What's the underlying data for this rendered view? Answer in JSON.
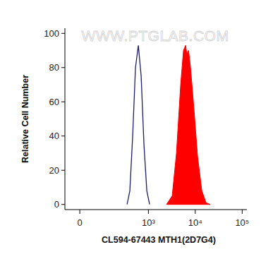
{
  "chart_data": {
    "type": "line",
    "watermark": "WWW.PTGLAB.COM",
    "x_label": "CL594-67443 MTH1(2D7G4)",
    "y_label": "Relative Cell Number",
    "log": "x",
    "xlim": [
      -55,
      126000
    ],
    "xticks": [
      0,
      {
        "value": 1000,
        "label": "10³"
      },
      {
        "value": 10000,
        "label": "10⁴"
      },
      {
        "value": 100000,
        "label": "10⁵"
      }
    ],
    "ylim": [
      -3,
      103
    ],
    "yticks": [
      0,
      20,
      40,
      60,
      80,
      100
    ],
    "grid": false,
    "series": [
      {
        "type": "line",
        "color": "#1c1f6b",
        "x": [
          348,
          400,
          460,
          529,
          609,
          700,
          804,
          925,
          1062
        ],
        "values": [
          0,
          8,
          40,
          80,
          93,
          75,
          35,
          8,
          0
        ]
      },
      {
        "type": "area",
        "color": "#ff0000",
        "x": [
          2440,
          3220,
          3970,
          4880,
          5600,
          6220,
          6600,
          7200,
          7920,
          9420,
          11200,
          13800,
          17000,
          20900
        ],
        "values": [
          0,
          5,
          30,
          70,
          90,
          93,
          88,
          90,
          80,
          55,
          28,
          8,
          1,
          0
        ]
      }
    ]
  }
}
